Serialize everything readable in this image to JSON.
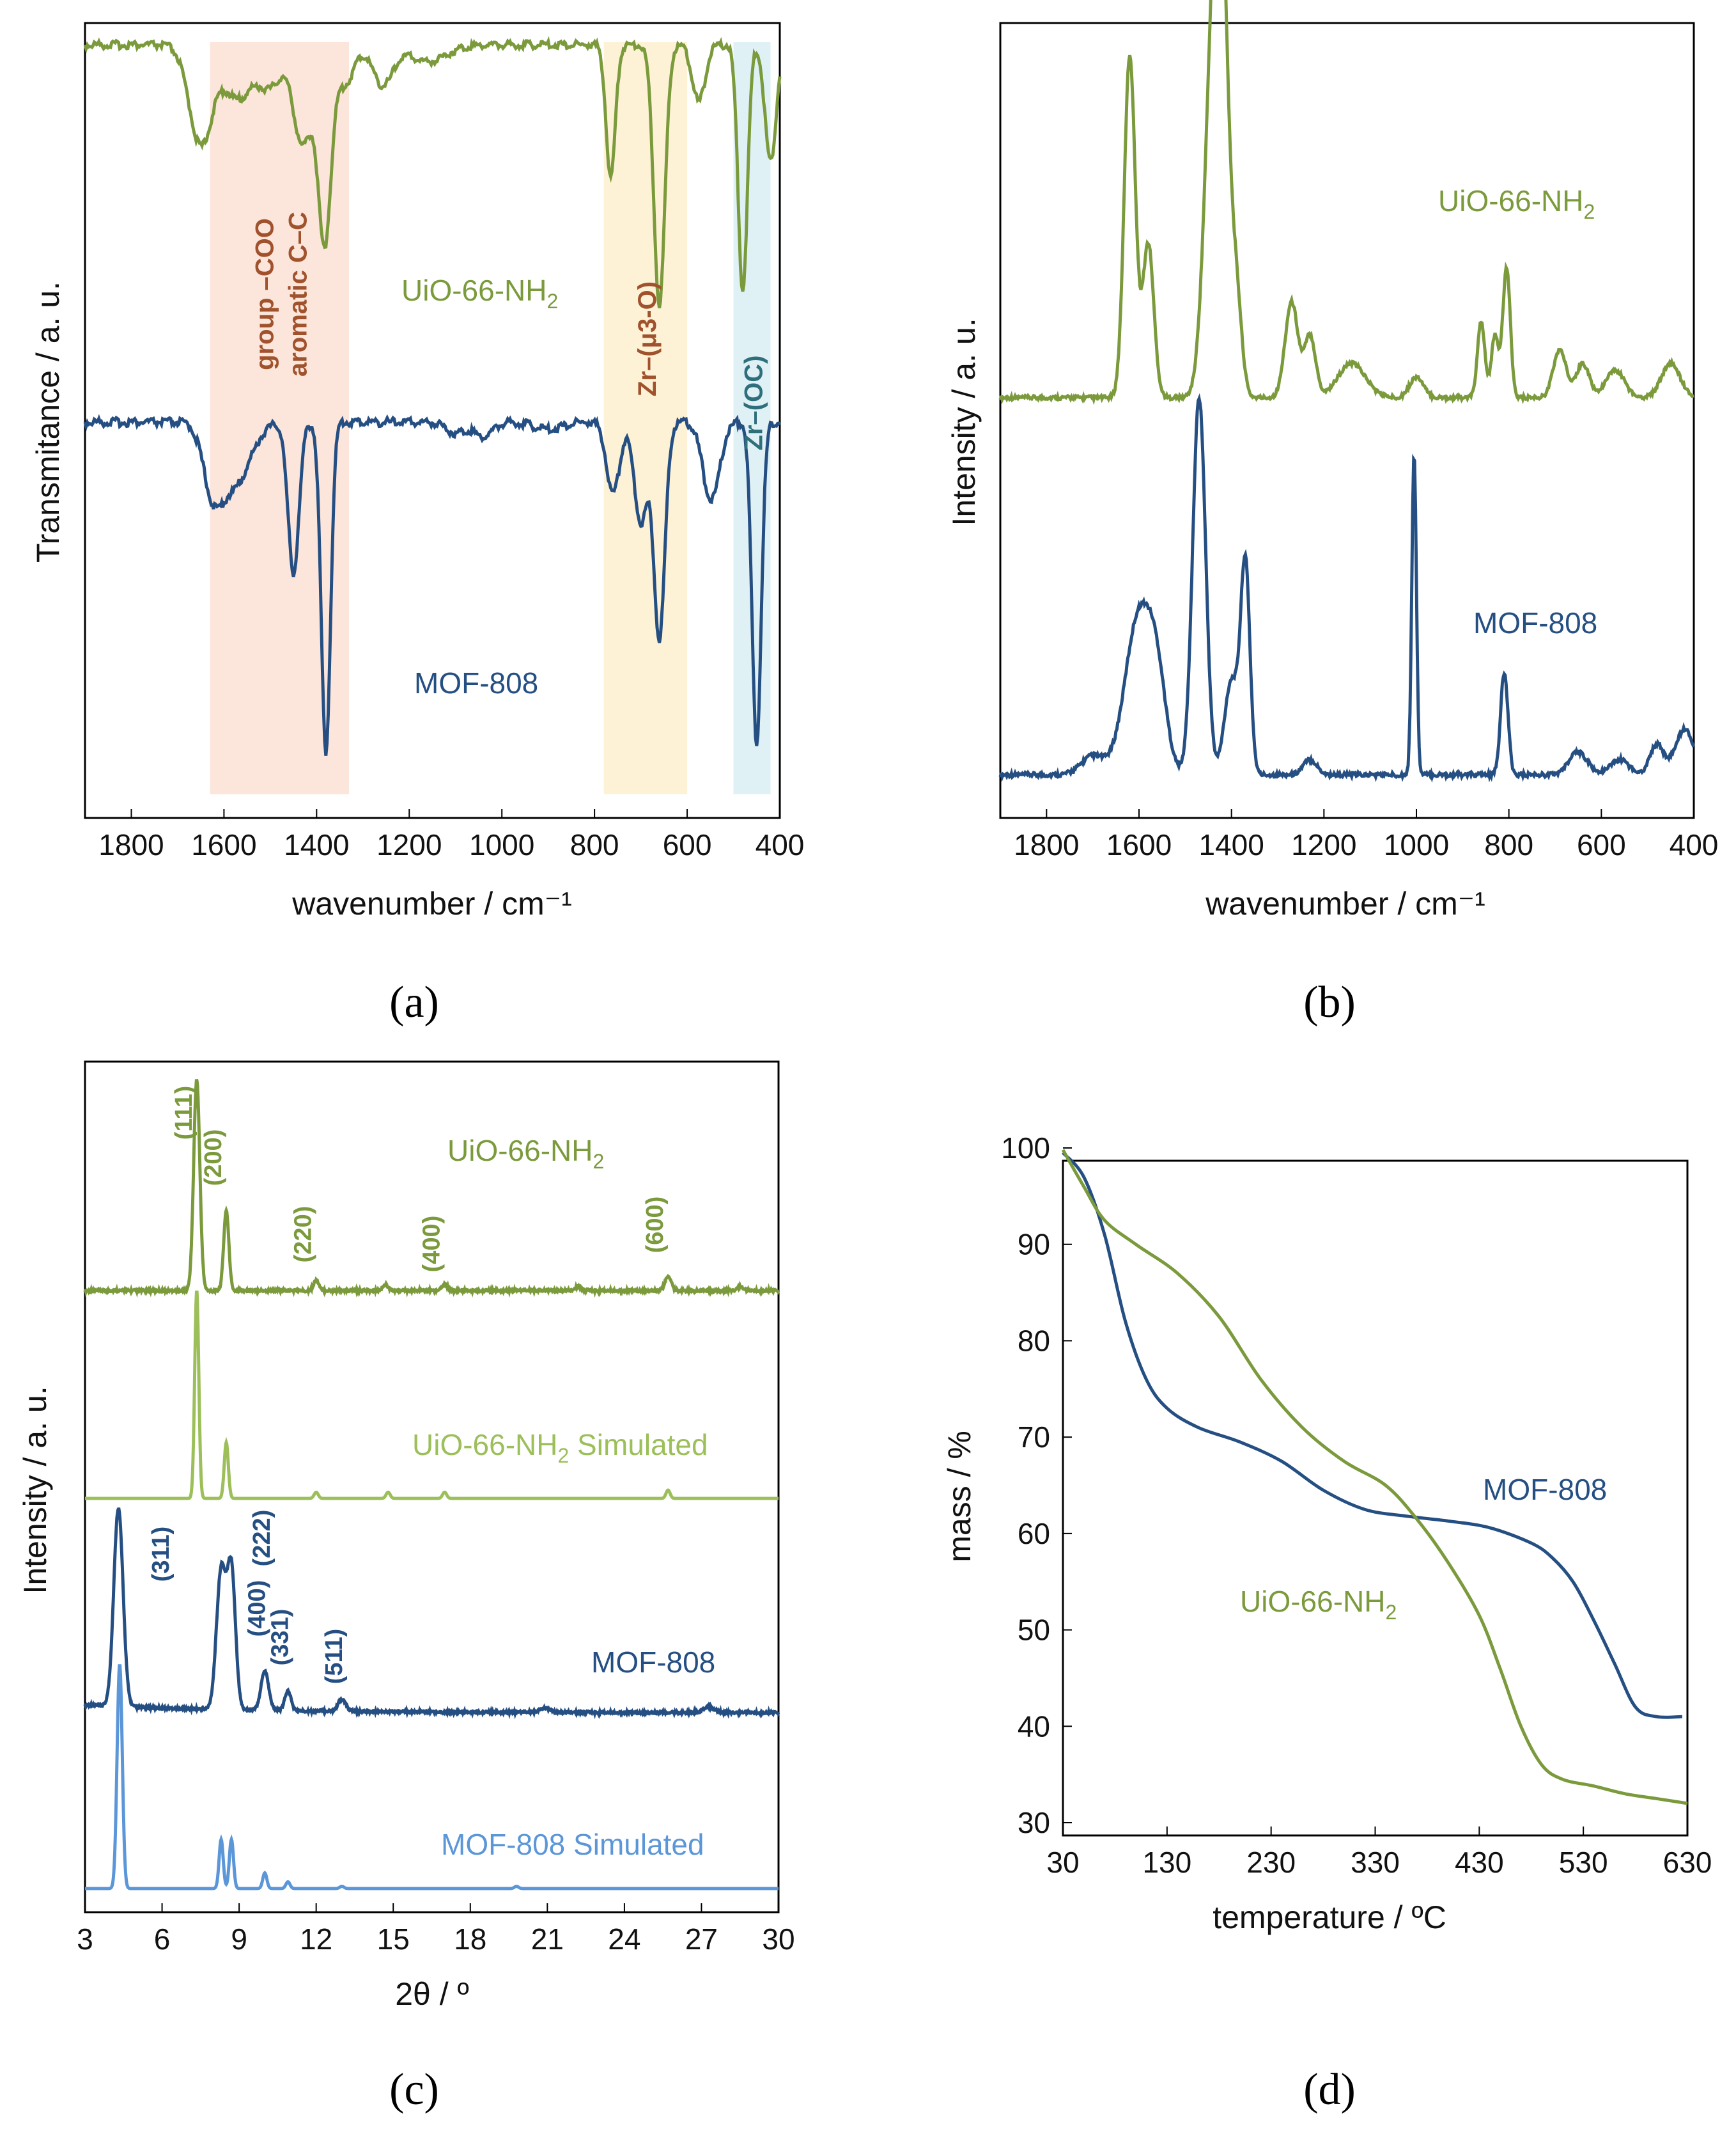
{
  "colors": {
    "green": "#7b9a3c",
    "blue": "#254f82",
    "light_green": "#9cbf5a",
    "light_blue": "#5b96d8",
    "band_orange": "#fbe1d3",
    "band_yellow": "#fdf0cf",
    "band_cyan": "#daeef4",
    "band_text_brown": "#a0522d",
    "band_text_teal": "#2e6f7c"
  },
  "chart_data": [
    {
      "panel": "a",
      "caption": "(a)",
      "type": "line",
      "xlabel": "wavenumber / cm⁻¹",
      "ylabel": "Transmitance / a. u.",
      "xlim": [
        1900,
        400
      ],
      "x_reversed": true,
      "xticks": [
        "1800",
        "1600",
        "1400",
        "1200",
        "1000",
        "800",
        "600",
        "400"
      ],
      "bands": [
        {
          "x_range": [
            1630,
            1330
          ],
          "labels": [
            "group –COO",
            "aromatic C–C"
          ],
          "color": "band_orange"
        },
        {
          "x_range": [
            780,
            600
          ],
          "labels": [
            "Zr–(μ3-O)"
          ],
          "color": "band_yellow"
        },
        {
          "x_range": [
            500,
            420
          ],
          "labels": [
            "Zr–(OC)"
          ],
          "color": "band_cyan"
        }
      ],
      "series": [
        {
          "name": "UiO-66-NH2",
          "name_main": "UiO-66-NH",
          "name_sub": "2",
          "color": "green",
          "baseline": 0.95,
          "peaks": [
            [
              1650,
              0.3,
              25
            ],
            [
              1570,
              0.16,
              30
            ],
            [
              1500,
              0.12,
              25
            ],
            [
              1430,
              0.3,
              20
            ],
            [
              1383,
              0.58,
              14
            ],
            [
              1340,
              0.12,
              20
            ],
            [
              1257,
              0.12,
              22
            ],
            [
              1160,
              0.05,
              40
            ],
            [
              765,
              0.4,
              10
            ],
            [
              660,
              0.78,
              12
            ],
            [
              575,
              0.17,
              14
            ],
            [
              480,
              0.74,
              10
            ],
            [
              420,
              0.35,
              12
            ]
          ]
        },
        {
          "name": "MOF-808",
          "name_main": "MOF-808",
          "name_sub": "",
          "color": "blue",
          "baseline": 0.95,
          "peaks": [
            [
              1625,
              0.15,
              20
            ],
            [
              1580,
              0.18,
              35
            ],
            [
              1450,
              0.42,
              12
            ],
            [
              1380,
              0.92,
              10
            ],
            [
              1100,
              0.03,
              20
            ],
            [
              1040,
              0.04,
              20
            ],
            [
              900,
              0.02,
              30
            ],
            [
              760,
              0.2,
              14
            ],
            [
              700,
              0.28,
              14
            ],
            [
              660,
              0.6,
              12
            ],
            [
              548,
              0.22,
              18
            ],
            [
              450,
              0.9,
              10
            ]
          ]
        }
      ]
    },
    {
      "panel": "b",
      "caption": "(b)",
      "type": "line",
      "xlabel": "wavenumber  / cm⁻¹",
      "ylabel": "Intensity / a. u.",
      "xlim": [
        1900,
        400
      ],
      "x_reversed": true,
      "xticks": [
        "1800",
        "1600",
        "1400",
        "1200",
        "1000",
        "800",
        "600",
        "400"
      ],
      "series": [
        {
          "name": "UiO-66-NH2",
          "name_main": "UiO-66-NH",
          "name_sub": "2",
          "color": "green",
          "baseline": 0.0,
          "peaks": [
            [
              1620,
              1.0,
              12
            ],
            [
              1580,
              0.45,
              12
            ],
            [
              1440,
              1.0,
              18
            ],
            [
              1420,
              0.95,
              14
            ],
            [
              1390,
              0.3,
              12
            ],
            [
              1270,
              0.28,
              14
            ],
            [
              1230,
              0.18,
              12
            ],
            [
              1140,
              0.1,
              30
            ],
            [
              1000,
              0.06,
              15
            ],
            [
              860,
              0.22,
              8
            ],
            [
              830,
              0.18,
              8
            ],
            [
              805,
              0.38,
              8
            ],
            [
              690,
              0.14,
              14
            ],
            [
              640,
              0.1,
              14
            ],
            [
              570,
              0.08,
              20
            ],
            [
              450,
              0.1,
              20
            ]
          ]
        },
        {
          "name": "MOF-808",
          "name_main": "MOF-808",
          "name_sub": "",
          "color": "blue",
          "baseline": 0.0,
          "peaks": [
            [
              1700,
              0.05,
              25
            ],
            [
              1600,
              0.42,
              30
            ],
            [
              1560,
              0.18,
              20
            ],
            [
              1470,
              1.0,
              14
            ],
            [
              1400,
              0.25,
              15
            ],
            [
              1370,
              0.55,
              10
            ],
            [
              1230,
              0.04,
              15
            ],
            [
              1005,
              0.85,
              5
            ],
            [
              810,
              0.27,
              8
            ],
            [
              650,
              0.06,
              20
            ],
            [
              560,
              0.04,
              20
            ],
            [
              480,
              0.08,
              15
            ],
            [
              420,
              0.12,
              20
            ]
          ]
        }
      ]
    },
    {
      "panel": "c",
      "caption": "(c)",
      "type": "line",
      "xlabel": "2θ / º",
      "ylabel": "Intensity / a. u.",
      "xlim": [
        3,
        30
      ],
      "xticks": [
        "3",
        "6",
        "9",
        "12",
        "15",
        "18",
        "21",
        "24",
        "27",
        "30"
      ],
      "series": [
        {
          "name": "UiO-66-NH2",
          "name_main": "UiO-66-NH",
          "name_sub": "2",
          "color": "green",
          "peaks": [
            [
              7.35,
              1.0,
              0.12
            ],
            [
              8.5,
              0.38,
              0.1
            ],
            [
              12.0,
              0.05,
              0.1
            ],
            [
              14.7,
              0.03,
              0.1
            ],
            [
              17.0,
              0.03,
              0.12
            ],
            [
              22.2,
              0.02,
              0.1
            ],
            [
              25.7,
              0.07,
              0.12
            ],
            [
              28.5,
              0.02,
              0.1
            ]
          ],
          "reflections": [
            {
              "hkl": "(111)",
              "x": 7.35
            },
            {
              "hkl": "(200)",
              "x": 8.5
            },
            {
              "hkl": "(220)",
              "x": 12.0
            },
            {
              "hkl": "(400)",
              "x": 17.0
            },
            {
              "hkl": "(600)",
              "x": 25.7
            }
          ]
        },
        {
          "name": "UiO-66-NH2 Simulated",
          "name_main": "UiO-66-NH",
          "name_sub": "2",
          "name_tail": " Simulated",
          "color": "light_green",
          "peaks": [
            [
              7.35,
              1.0,
              0.08
            ],
            [
              8.5,
              0.27,
              0.08
            ],
            [
              12.0,
              0.03,
              0.08
            ],
            [
              14.8,
              0.03,
              0.08
            ],
            [
              17.0,
              0.03,
              0.08
            ],
            [
              25.7,
              0.04,
              0.08
            ]
          ]
        },
        {
          "name": "MOF-808",
          "name_main": "MOF-808",
          "name_sub": "",
          "color": "blue",
          "peaks": [
            [
              4.3,
              1.0,
              0.18
            ],
            [
              8.3,
              0.7,
              0.18
            ],
            [
              8.7,
              0.7,
              0.16
            ],
            [
              10.0,
              0.2,
              0.15
            ],
            [
              10.9,
              0.1,
              0.12
            ],
            [
              13.0,
              0.06,
              0.15
            ],
            [
              20.9,
              0.02,
              0.2
            ],
            [
              27.3,
              0.03,
              0.2
            ]
          ],
          "reflections": [
            {
              "hkl": "(311)",
              "x": 8.3
            },
            {
              "hkl": "(222)",
              "x": 8.7
            },
            {
              "hkl": "(400)",
              "x": 10.0
            },
            {
              "hkl": "(331)",
              "x": 10.9
            },
            {
              "hkl": "(511)",
              "x": 13.0
            }
          ]
        },
        {
          "name": "MOF-808 Simulated",
          "name_main": "MOF-808 Simulated",
          "name_sub": "",
          "color": "light_blue",
          "peaks": [
            [
              4.35,
              1.0,
              0.1
            ],
            [
              8.3,
              0.22,
              0.08
            ],
            [
              8.7,
              0.22,
              0.08
            ],
            [
              10.0,
              0.07,
              0.08
            ],
            [
              10.9,
              0.03,
              0.08
            ],
            [
              13.0,
              0.01,
              0.08
            ],
            [
              19.8,
              0.01,
              0.08
            ]
          ]
        }
      ]
    },
    {
      "panel": "d",
      "caption": "(d)",
      "type": "line",
      "xlabel": "temperature / ºC",
      "ylabel": "mass / %",
      "xlim": [
        30,
        630
      ],
      "ylim": [
        30,
        100
      ],
      "xticks": [
        30,
        130,
        230,
        330,
        430,
        530,
        630
      ],
      "yticks": [
        30,
        40,
        50,
        60,
        70,
        80,
        90,
        100
      ],
      "series": [
        {
          "name": "MOF-808",
          "name_main": "MOF-808",
          "name_sub": "",
          "color": "blue",
          "points": [
            [
              30,
              99.5
            ],
            [
              50,
              97
            ],
            [
              70,
              91
            ],
            [
              90,
              82
            ],
            [
              110,
              76
            ],
            [
              130,
              73
            ],
            [
              160,
              71
            ],
            [
              200,
              69.5
            ],
            [
              240,
              67.5
            ],
            [
              280,
              64.5
            ],
            [
              320,
              62.5
            ],
            [
              360,
              61.8
            ],
            [
              400,
              61.3
            ],
            [
              440,
              60.6
            ],
            [
              480,
              59
            ],
            [
              500,
              57.5
            ],
            [
              520,
              55
            ],
            [
              540,
              51
            ],
            [
              560,
              46.5
            ],
            [
              580,
              42
            ],
            [
              600,
              41
            ],
            [
              625,
              41
            ]
          ]
        },
        {
          "name": "UiO-66-NH2",
          "name_main": "UiO-66-NH",
          "name_sub": "2",
          "color": "green",
          "points": [
            [
              30,
              99.8
            ],
            [
              50,
              96
            ],
            [
              70,
              92.5
            ],
            [
              100,
              90
            ],
            [
              140,
              87
            ],
            [
              180,
              82.5
            ],
            [
              220,
              76
            ],
            [
              260,
              71
            ],
            [
              300,
              67.5
            ],
            [
              340,
              65
            ],
            [
              370,
              61.5
            ],
            [
              400,
              57
            ],
            [
              430,
              51.5
            ],
            [
              450,
              46
            ],
            [
              470,
              40
            ],
            [
              490,
              36
            ],
            [
              510,
              34.5
            ],
            [
              540,
              33.8
            ],
            [
              570,
              33
            ],
            [
              600,
              32.5
            ],
            [
              630,
              32
            ]
          ]
        }
      ]
    }
  ]
}
